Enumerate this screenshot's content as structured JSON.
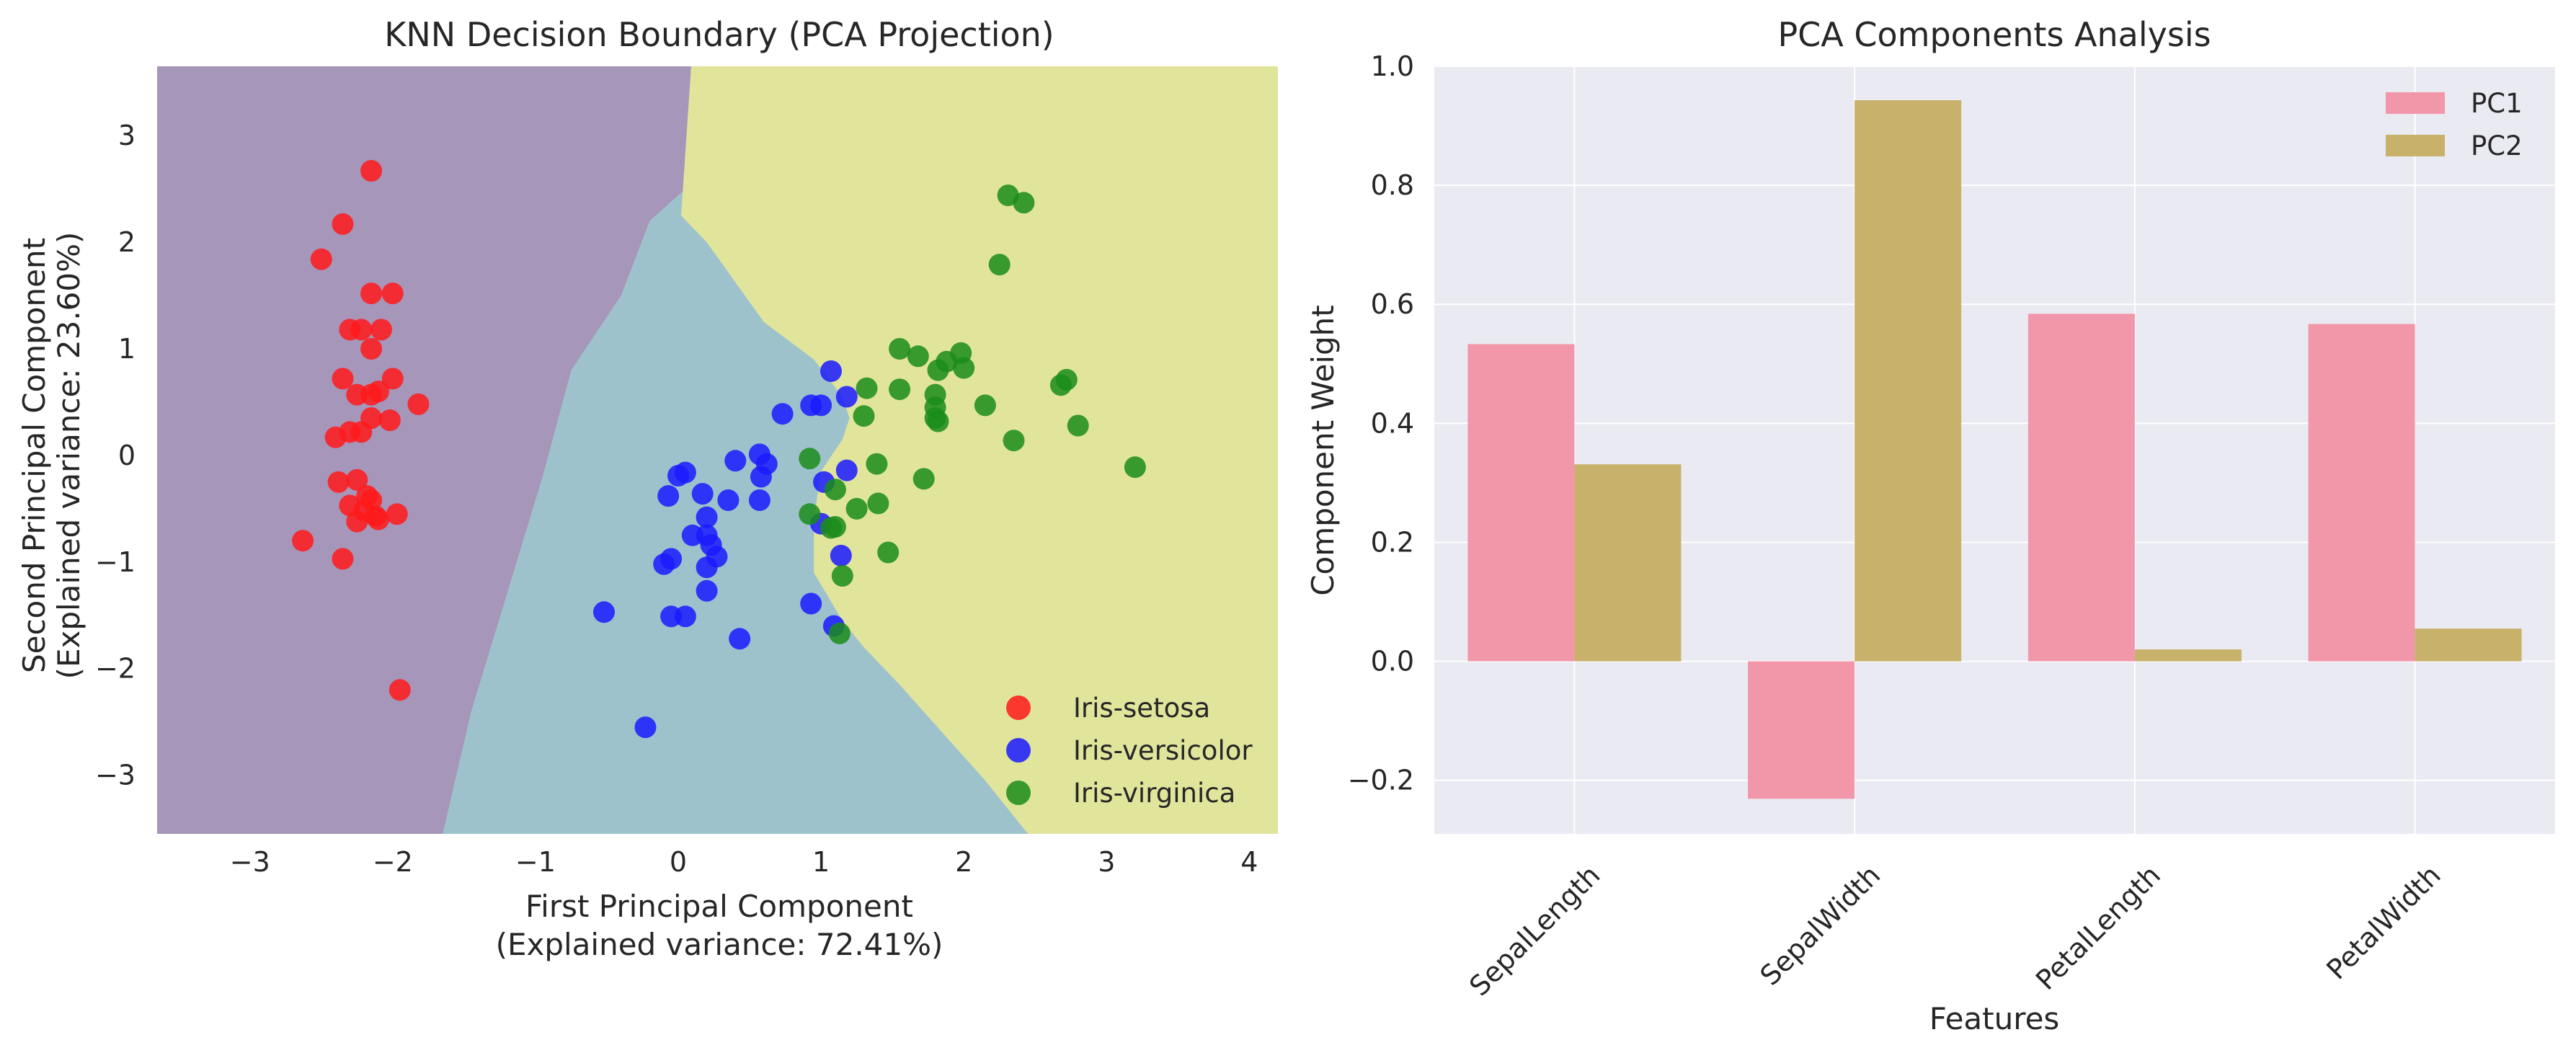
{
  "chart_data": [
    {
      "type": "scatter",
      "title": "KNN Decision Boundary (PCA Projection)",
      "xlabel_line1": "First Principal Component",
      "xlabel_line2": "(Explained variance: 72.41%)",
      "ylabel_line1": "Second Principal Component",
      "ylabel_line2": "(Explained variance: 23.60%)",
      "xlim": [
        -3.65,
        4.2
      ],
      "ylim": [
        -3.55,
        3.65
      ],
      "xticks": [
        -3,
        -2,
        -1,
        0,
        1,
        2,
        3,
        4
      ],
      "yticks": [
        -3,
        -2,
        -1,
        0,
        1,
        2,
        3
      ],
      "legend_position": "lower-right",
      "regions": [
        {
          "label": "Iris-setosa",
          "color": "#a696ba"
        },
        {
          "label": "Iris-versicolor",
          "color": "#9ec2cc"
        },
        {
          "label": "Iris-virginica",
          "color": "#e1e59c"
        }
      ],
      "region_boundaries": {
        "setosa_versicolor": [
          [
            0.09,
            3.65
          ],
          [
            0.05,
            2.5
          ],
          [
            -0.2,
            2.2
          ],
          [
            -0.4,
            1.5
          ],
          [
            -0.75,
            0.8
          ],
          [
            -0.95,
            -0.2
          ],
          [
            -1.2,
            -1.3
          ],
          [
            -1.45,
            -2.4
          ],
          [
            -1.65,
            -3.55
          ]
        ],
        "versicolor_virginica": [
          [
            0.09,
            3.65
          ],
          [
            0.02,
            2.25
          ],
          [
            0.2,
            2.0
          ],
          [
            0.6,
            1.25
          ],
          [
            0.95,
            0.9
          ],
          [
            1.15,
            0.55
          ],
          [
            1.2,
            0.35
          ],
          [
            1.15,
            0.15
          ],
          [
            1.0,
            -0.15
          ],
          [
            0.95,
            -0.6
          ],
          [
            0.95,
            -1.1
          ],
          [
            1.15,
            -1.55
          ],
          [
            1.3,
            -1.8
          ],
          [
            1.55,
            -2.15
          ],
          [
            1.85,
            -2.6
          ],
          [
            2.15,
            -3.05
          ],
          [
            2.45,
            -3.55
          ]
        ]
      },
      "series": [
        {
          "name": "Iris-setosa",
          "color": "#ff1a1a",
          "points": [
            [
              -2.15,
              2.67
            ],
            [
              -2.35,
              2.17
            ],
            [
              -2.5,
              1.84
            ],
            [
              -2.15,
              1.52
            ],
            [
              -2.0,
              1.52
            ],
            [
              -2.3,
              1.18
            ],
            [
              -2.22,
              1.18
            ],
            [
              -2.08,
              1.18
            ],
            [
              -2.15,
              1.0
            ],
            [
              -2.35,
              0.72
            ],
            [
              -2.0,
              0.72
            ],
            [
              -2.25,
              0.57
            ],
            [
              -2.15,
              0.57
            ],
            [
              -2.1,
              0.6
            ],
            [
              -1.82,
              0.48
            ],
            [
              -2.15,
              0.35
            ],
            [
              -2.02,
              0.33
            ],
            [
              -2.3,
              0.22
            ],
            [
              -2.22,
              0.22
            ],
            [
              -2.4,
              0.17
            ],
            [
              -2.38,
              -0.25
            ],
            [
              -2.25,
              -0.23
            ],
            [
              -2.18,
              -0.38
            ],
            [
              -2.15,
              -0.42
            ],
            [
              -2.3,
              -0.47
            ],
            [
              -2.2,
              -0.52
            ],
            [
              -2.12,
              -0.57
            ],
            [
              -1.97,
              -0.55
            ],
            [
              -2.1,
              -0.6
            ],
            [
              -2.25,
              -0.62
            ],
            [
              -2.63,
              -0.8
            ],
            [
              -2.35,
              -0.97
            ],
            [
              -1.95,
              -2.2
            ]
          ]
        },
        {
          "name": "Iris-versicolor",
          "color": "#1a1aff",
          "points": [
            [
              1.07,
              0.79
            ],
            [
              1.18,
              0.55
            ],
            [
              0.93,
              0.47
            ],
            [
              1.0,
              0.47
            ],
            [
              0.73,
              0.39
            ],
            [
              0.0,
              -0.19
            ],
            [
              0.05,
              -0.16
            ],
            [
              0.4,
              -0.05
            ],
            [
              0.57,
              0.01
            ],
            [
              0.62,
              -0.08
            ],
            [
              0.58,
              -0.2
            ],
            [
              -0.07,
              -0.38
            ],
            [
              0.17,
              -0.36
            ],
            [
              0.35,
              -0.42
            ],
            [
              0.57,
              -0.42
            ],
            [
              1.02,
              -0.25
            ],
            [
              1.18,
              -0.14
            ],
            [
              0.2,
              -0.58
            ],
            [
              1.0,
              -0.64
            ],
            [
              0.1,
              -0.75
            ],
            [
              0.2,
              -0.75
            ],
            [
              0.23,
              -0.84
            ],
            [
              0.27,
              -0.95
            ],
            [
              -0.05,
              -0.97
            ],
            [
              -0.1,
              -1.02
            ],
            [
              0.2,
              -1.05
            ],
            [
              0.2,
              -1.27
            ],
            [
              1.14,
              -0.94
            ],
            [
              -0.52,
              -1.47
            ],
            [
              -0.05,
              -1.51
            ],
            [
              0.05,
              -1.51
            ],
            [
              0.93,
              -1.39
            ],
            [
              1.09,
              -1.6
            ],
            [
              0.43,
              -1.72
            ],
            [
              -0.23,
              -2.55
            ]
          ]
        },
        {
          "name": "Iris-virginica",
          "color": "#1a8c1a",
          "points": [
            [
              2.31,
              2.44
            ],
            [
              2.42,
              2.37
            ],
            [
              2.25,
              1.79
            ],
            [
              1.55,
              1.0
            ],
            [
              1.68,
              0.93
            ],
            [
              1.88,
              0.88
            ],
            [
              1.98,
              0.96
            ],
            [
              2.0,
              0.82
            ],
            [
              1.82,
              0.8
            ],
            [
              2.72,
              0.71
            ],
            [
              2.68,
              0.66
            ],
            [
              1.32,
              0.63
            ],
            [
              1.55,
              0.62
            ],
            [
              1.8,
              0.57
            ],
            [
              2.15,
              0.47
            ],
            [
              1.8,
              0.45
            ],
            [
              1.8,
              0.35
            ],
            [
              1.82,
              0.32
            ],
            [
              1.3,
              0.37
            ],
            [
              2.8,
              0.28
            ],
            [
              2.35,
              0.14
            ],
            [
              0.92,
              -0.03
            ],
            [
              1.39,
              -0.08
            ],
            [
              3.2,
              -0.11
            ],
            [
              1.72,
              -0.22
            ],
            [
              1.1,
              -0.32
            ],
            [
              1.4,
              -0.45
            ],
            [
              1.25,
              -0.5
            ],
            [
              0.92,
              -0.55
            ],
            [
              1.1,
              -0.67
            ],
            [
              1.07,
              -0.68
            ],
            [
              1.47,
              -0.91
            ],
            [
              1.15,
              -1.13
            ],
            [
              1.13,
              -1.67
            ]
          ]
        }
      ]
    },
    {
      "type": "bar",
      "title": "PCA Components Analysis",
      "xlabel": "Features",
      "ylabel": "Component Weight",
      "ylim": [
        -0.29,
        1.0
      ],
      "yticks": [
        -0.2,
        0.0,
        0.2,
        0.4,
        0.6,
        0.8,
        1.0
      ],
      "ytick_labels": [
        "−0.2",
        "0.0",
        "0.2",
        "0.4",
        "0.6",
        "0.8",
        "1.0"
      ],
      "legend_position": "top-right",
      "categories": [
        "SepalLength",
        "SepalWidth",
        "PetalLength",
        "PetalWidth"
      ],
      "series": [
        {
          "name": "PC1",
          "color": "#f296a9",
          "values": [
            0.533,
            -0.231,
            0.584,
            0.567
          ]
        },
        {
          "name": "PC2",
          "color": "#c8b16b",
          "values": [
            0.331,
            0.943,
            0.02,
            0.055
          ]
        }
      ]
    }
  ]
}
